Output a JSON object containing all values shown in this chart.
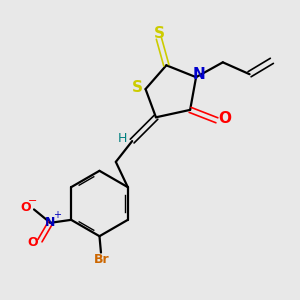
{
  "bg_color": "#e8e8e8",
  "bond_color": "#000000",
  "S_color": "#cccc00",
  "N_color": "#0000cc",
  "O_color": "#ff0000",
  "Br_color": "#cc6600",
  "H_color": "#008080",
  "figsize": [
    3.0,
    3.0
  ],
  "dpi": 100,
  "xlim": [
    0,
    10
  ],
  "ylim": [
    0,
    10
  ]
}
